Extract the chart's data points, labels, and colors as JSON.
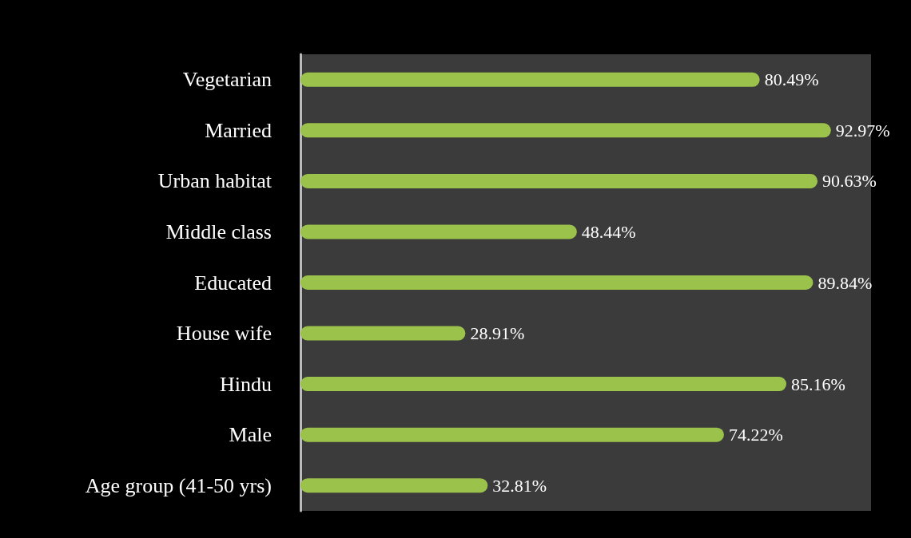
{
  "chart_data": {
    "type": "bar",
    "orientation": "horizontal",
    "categories": [
      "Vegetarian",
      "Married",
      "Urban habitat",
      "Middle class",
      "Educated",
      "House wife",
      "Hindu",
      "Male",
      "Age group (41-50 yrs)"
    ],
    "values": [
      80.49,
      92.97,
      90.63,
      48.44,
      89.84,
      28.91,
      85.16,
      74.22,
      32.81
    ],
    "value_labels": [
      "80.49%",
      "92.97%",
      "90.63%",
      "48.44%",
      "89.84%",
      "28.91%",
      "85.16%",
      "74.22%",
      "32.81%"
    ],
    "color": "#9bc24a"
  }
}
